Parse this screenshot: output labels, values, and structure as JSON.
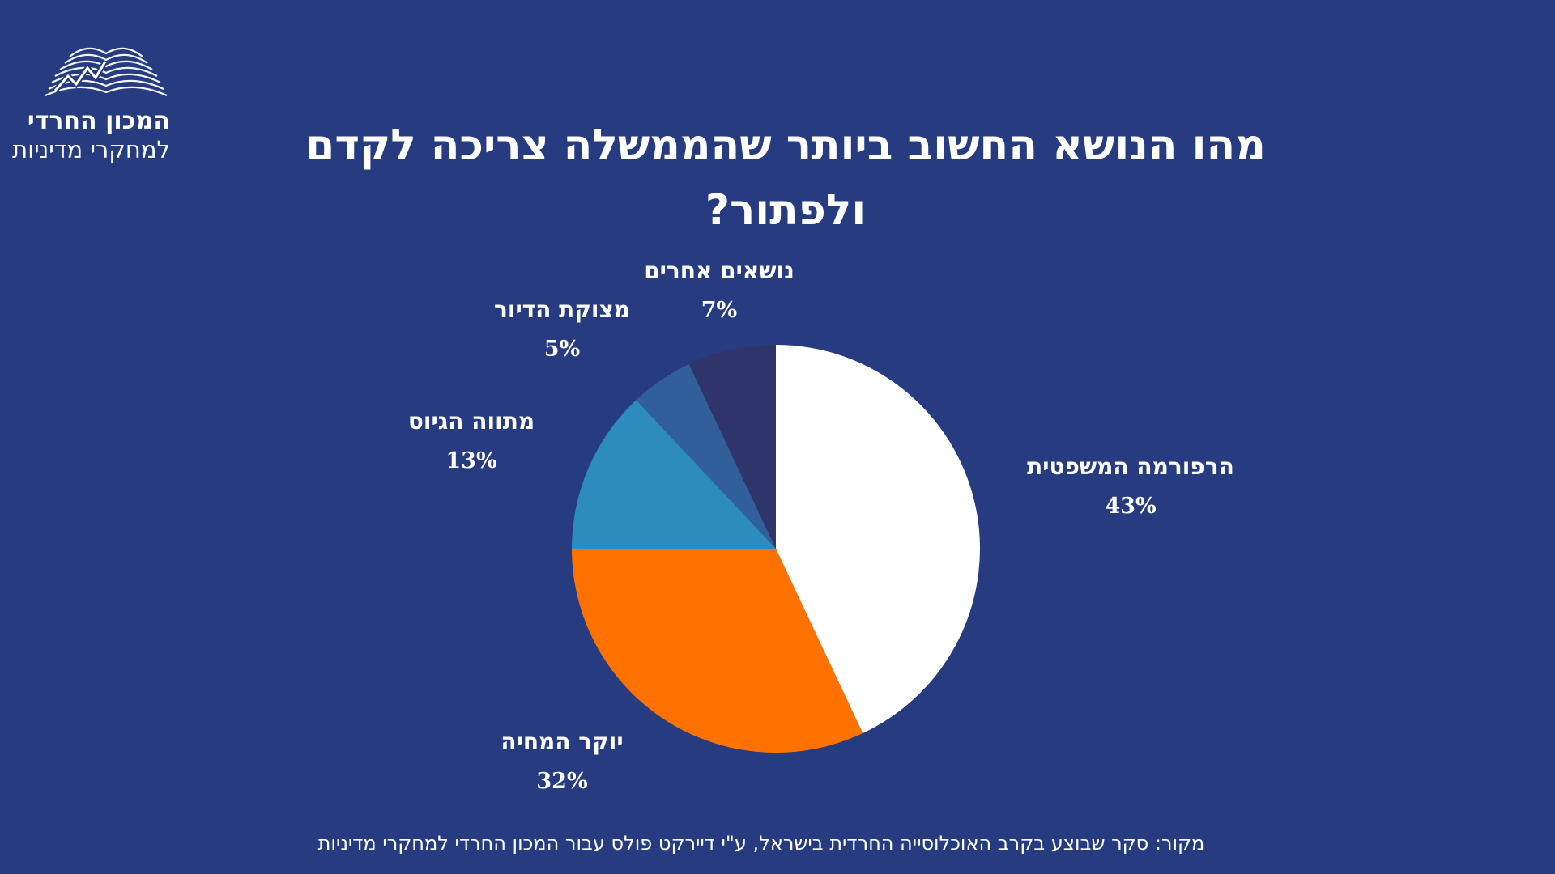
{
  "logo": {
    "line1": "המכון החרדי",
    "line2": "למחקרי מדיניות"
  },
  "title": "מהו הנושא החשוב ביותר שהממשלה צריכה לקדם ולפתור?",
  "source": "מקור: סקר שבוצע בקרב האוכלוסייה החרדית בישראל, ע\"י דיירקט פולס עבור המכון החרדי למחקרי מדיניות",
  "colors": {
    "background": "#263b80"
  },
  "chart_data": {
    "type": "pie",
    "title": "מהו הנושא החשוב ביותר שהממשלה צריכה לקדם ולפתור?",
    "start_angle": "12 o'clock",
    "direction": "clockwise",
    "slices": [
      {
        "label": "הרפורמה המשפטית",
        "value": 43,
        "value_label": "43%",
        "color": "#ffffff"
      },
      {
        "label": "יוקר המחיה",
        "value": 32,
        "value_label": "32%",
        "color": "#ff7200"
      },
      {
        "label": "מתווה הגיוס",
        "value": 13,
        "value_label": "13%",
        "color": "#2e8bbe"
      },
      {
        "label": "מצוקת הדיור",
        "value": 5,
        "value_label": "5%",
        "color": "#315f9a"
      },
      {
        "label": "נושאים אחרים",
        "value": 7,
        "value_label": "7%",
        "color": "#2f346b"
      }
    ]
  }
}
